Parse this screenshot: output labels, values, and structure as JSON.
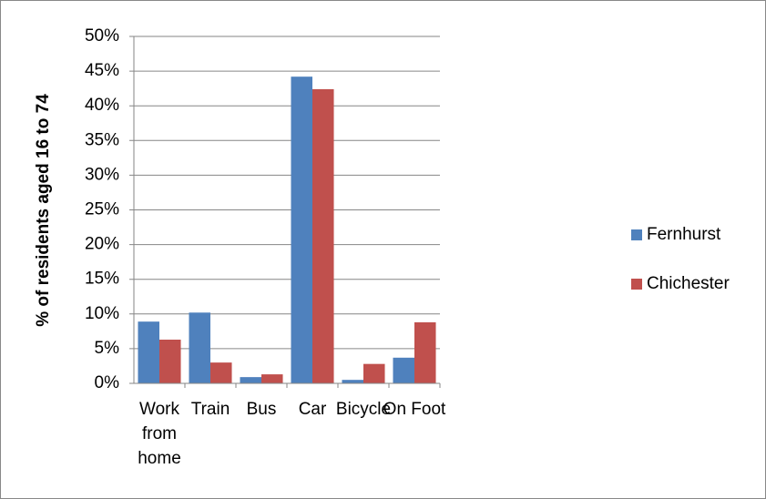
{
  "chart_data": {
    "type": "bar",
    "y_label": "% of residents aged 16 to 74",
    "categories": [
      "Work from home",
      "Train",
      "Bus",
      "Car",
      "Bicycle",
      "On Foot"
    ],
    "series": [
      {
        "name": "Fernhurst",
        "color": "#4f81bd",
        "values": [
          8.9,
          10.2,
          0.9,
          44.2,
          0.5,
          3.7
        ]
      },
      {
        "name": "Chichester",
        "color": "#c0504d",
        "values": [
          6.3,
          3.0,
          1.3,
          42.4,
          2.8,
          8.8
        ]
      }
    ],
    "ylim": [
      0,
      50
    ],
    "yticks": [
      {
        "value": 0,
        "label": "0%"
      },
      {
        "value": 5,
        "label": "5%"
      },
      {
        "value": 10,
        "label": "10%"
      },
      {
        "value": 15,
        "label": "15%"
      },
      {
        "value": 20,
        "label": "20%"
      },
      {
        "value": 25,
        "label": "25%"
      },
      {
        "value": 30,
        "label": "30%"
      },
      {
        "value": 35,
        "label": "35%"
      },
      {
        "value": 40,
        "label": "40%"
      },
      {
        "value": 45,
        "label": "45%"
      },
      {
        "value": 50,
        "label": "50%"
      }
    ],
    "grid": true,
    "legend": "right"
  }
}
